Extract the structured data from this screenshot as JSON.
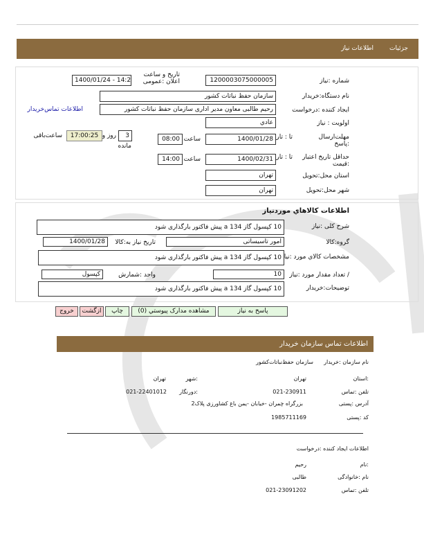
{
  "header": {
    "tab_details": "جزئیات",
    "tab_info": "اطلاعات نیاز"
  },
  "form": {
    "need_number_label": "شماره :نیاز",
    "need_number": "1200003075000005",
    "announce_label": "تاریخ و ساعت اعلان :عمومی",
    "announce_value": "1400/01/24 - 14:21",
    "buyer_org_label": "نام دستگاه:خریدار",
    "buyer_org": "سازمان حفظ نباتات کشور",
    "creator_label": "ایجاد کننده :درخواست",
    "creator": "رحیم طالبی معاون مدیر اداری سازمان حفظ نباتات کشور",
    "contact_link": "اطلاعات تماس‌خریدار",
    "priority_label": "اولویت : نیاز",
    "priority": "عادي",
    "deadline_label": "مهلت‌ارسال :پاسخ",
    "to_date_label": "تا : تاریخ",
    "deadline_date": "1400/01/28",
    "time_label": "ساعت",
    "deadline_time": "08:00",
    "days": "3",
    "days_label": "روز و",
    "remaining": "17:00:25",
    "remaining_label": "ساعت‌باقی",
    "remaining_suffix": "مانده",
    "validity_label": "حداقل تاریخ اعتبار :قیمت",
    "validity_date": "1400/02/31",
    "validity_time": "14:00",
    "province_label": "استان محل:تحویل",
    "province": "تهران",
    "city_label": "شهر محل:تحویل",
    "city": "تهران"
  },
  "goods": {
    "title": "اطلاعات کالاهاي موردنیاز",
    "desc_label": "شرح کلی :نیاز",
    "desc": "10 کپسول گاز 134 a پیش فاکتور بارگذاری شود",
    "group_label": "گروه:کالا",
    "group": "امور تاسیساتی",
    "need_date_label": "تاریخ نیاز به:کالا",
    "need_date": "1400/01/28",
    "spec_label": "مشخصات کالاي مورد :نیاز",
    "spec": "10 کپسول گاز 134 a پیش فاکتور بارگذاری شود",
    "qty_label": "/ تعداد مقدار مورد :نیاز",
    "qty": "10",
    "unit_label": "واحد :شمارش",
    "unit": "کپسول",
    "notes_label": "توضیحات:خریدار",
    "notes": "10 کپسول گاز 134 a پیش فاکتور بارگذاری شود"
  },
  "buttons": {
    "reply": "پاسخ به نیاز",
    "attachments": "مشاهده مدارک پیوستي (0)",
    "print": "چاپ",
    "back": "ازگشت",
    "exit": "خروج"
  },
  "contact": {
    "title": "اطلاعات تماس سازمان خریدار",
    "org_label": "نام سازمان :خریدار",
    "org": "سازمان حفظ‌نباتات‌کشور",
    "province_label": ":استان",
    "province": "تهران",
    "city_label": ":شهر",
    "city": "تهران",
    "phone_label": "تلفن :تماس",
    "phone": "021-230911",
    "fax_label": ":دورنگار",
    "fax": "021-22401012",
    "address_label": "آدرس :پستی",
    "address": "بزرگراه چمران -خیابان -یمن باغ کشاورزی پلاک2",
    "postal_label": "کد :پستی",
    "postal": "1985711169"
  },
  "creator_info": {
    "title": "اطلاعات ایجاد کننده :درخواست",
    "name_label": ":نام",
    "name": "رحیم",
    "family_label": "نام :خانوادگی",
    "family": "طالبی",
    "phone_label": "تلفن :تماس",
    "phone": "021-23091202"
  },
  "colors": {
    "header": "#8b6b3f",
    "remaining_bg": "#eeeecc",
    "green_btn": "#e4f7e0",
    "pink_btn": "#f8d0d0",
    "link": "#1a1aa8"
  }
}
